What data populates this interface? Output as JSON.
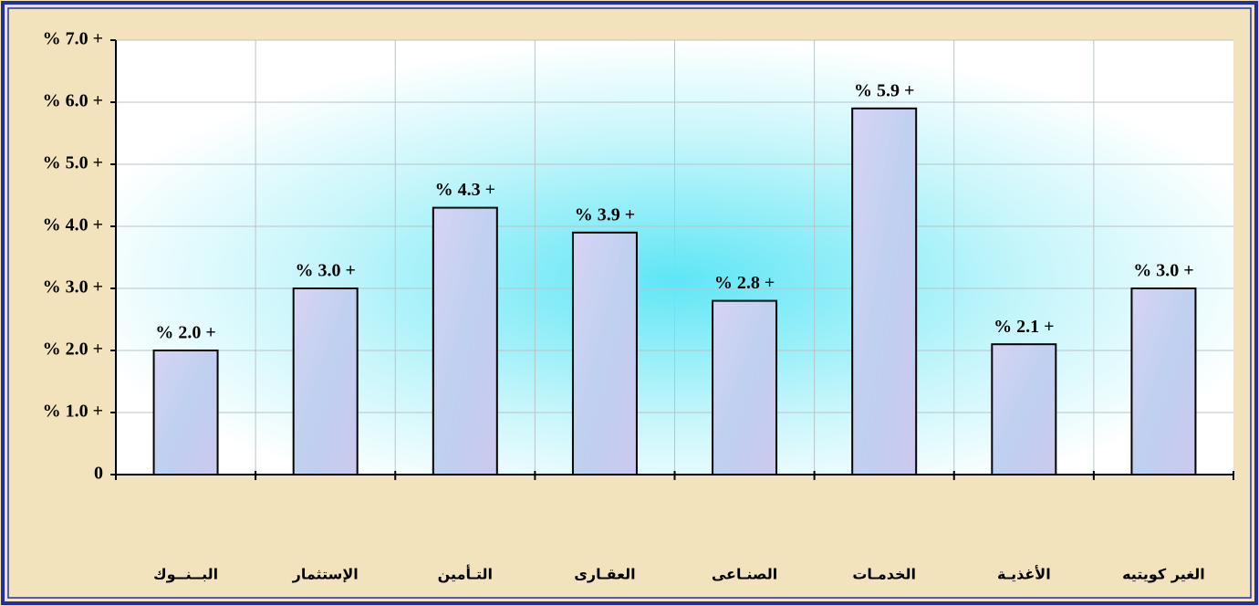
{
  "chart_data": {
    "type": "bar",
    "categories": [
      "البــنــوك",
      "الإستثمار",
      "التـأمين",
      "العقـارى",
      "الصنـاعى",
      "الخدمـات",
      "الأغذيـة",
      "الغير كويتيه"
    ],
    "values": [
      2.0,
      3.0,
      4.3,
      3.9,
      2.8,
      5.9,
      2.1,
      3.0
    ],
    "value_labels": [
      "% 2.0 +",
      "% 3.0 +",
      "% 4.3 +",
      "% 3.9 +",
      "% 2.8 +",
      "% 5.9 +",
      "% 2.1 +",
      "% 3.0 +"
    ],
    "color": "#c9cff2",
    "ylim": [
      0,
      7
    ],
    "yticks": [
      0,
      {
        "value": 1,
        "label": "% 1.0 +"
      },
      {
        "value": 2,
        "label": "% 2.0 +"
      },
      {
        "value": 3,
        "label": "% 3.0 +"
      },
      {
        "value": 4,
        "label": "% 4.0 +"
      },
      {
        "value": 5,
        "label": "% 5.0 +"
      },
      {
        "value": 6,
        "label": "% 6.0 +"
      },
      {
        "value": 7,
        "label": "% 7.0 +"
      }
    ],
    "grid": true
  }
}
